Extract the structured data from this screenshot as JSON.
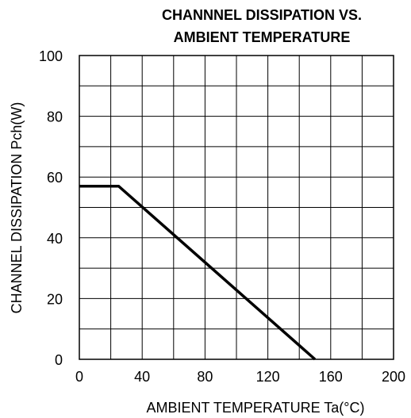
{
  "chart_data": {
    "type": "line",
    "title_lines": [
      "CHANNNEL DISSIPATION VS.",
      "AMBIENT TEMPERATURE"
    ],
    "xlabel": "AMBIENT TEMPERATURE Ta(°C)",
    "ylabel": "CHANNEL DISSIPATION Pch(W)",
    "xlim": [
      0,
      200
    ],
    "ylim": [
      0,
      100
    ],
    "x_ticks": [
      0,
      40,
      80,
      120,
      160,
      200
    ],
    "y_ticks": [
      0,
      20,
      40,
      60,
      80,
      100
    ],
    "x_gridlines": [
      0,
      20,
      40,
      60,
      80,
      100,
      120,
      140,
      160,
      180,
      200
    ],
    "y_gridlines": [
      0,
      10,
      20,
      30,
      40,
      50,
      60,
      70,
      80,
      90,
      100
    ],
    "grid": true,
    "series": [
      {
        "x": [
          0,
          25,
          150
        ],
        "y": [
          57,
          57,
          0
        ]
      }
    ],
    "colors": {
      "line": "#000000",
      "grid": "#000000",
      "frame": "#000000"
    }
  }
}
